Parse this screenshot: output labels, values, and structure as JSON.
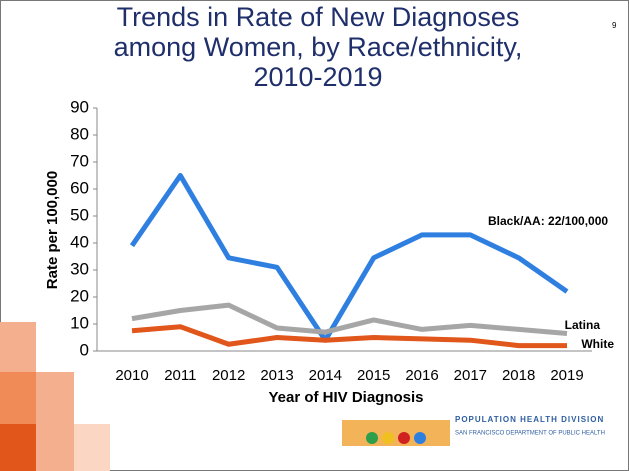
{
  "page_number": "9",
  "chart_data": {
    "type": "line",
    "title": [
      "Trends in Rate of New Diagnoses",
      "among Women, by Race/ethnicity,",
      "2010-2019"
    ],
    "y_label": "Rate per 100,000",
    "x_label": "Year of HIV Diagnosis",
    "categories": [
      "2010",
      "2011",
      "2012",
      "2013",
      "2014",
      "2015",
      "2016",
      "2017",
      "2018",
      "2019"
    ],
    "ylim": [
      0,
      90
    ],
    "yticks": [
      0,
      10,
      20,
      30,
      40,
      50,
      60,
      70,
      80,
      90
    ],
    "series": [
      {
        "name": "Black/AA",
        "color": "#2e7fe0",
        "values": [
          39,
          65,
          34.5,
          31,
          4,
          34.5,
          43,
          43,
          34.5,
          22
        ]
      },
      {
        "name": "Latina",
        "color": "#a6a6a6",
        "values": [
          12,
          15,
          17,
          8.5,
          7,
          11.5,
          8,
          9.5,
          8,
          6.5
        ]
      },
      {
        "name": "White",
        "color": "#e0561b",
        "values": [
          7.5,
          9,
          2.5,
          5,
          4,
          5,
          4.5,
          4,
          2,
          2
        ]
      }
    ],
    "annotations": [
      "Black/AA: 22/100,000",
      "Latina",
      "White"
    ]
  },
  "footer": {
    "division": "POPULATION HEALTH DIVISION",
    "department": "SAN FRANCISCO DEPARTMENT OF PUBLIC HEALTH"
  }
}
